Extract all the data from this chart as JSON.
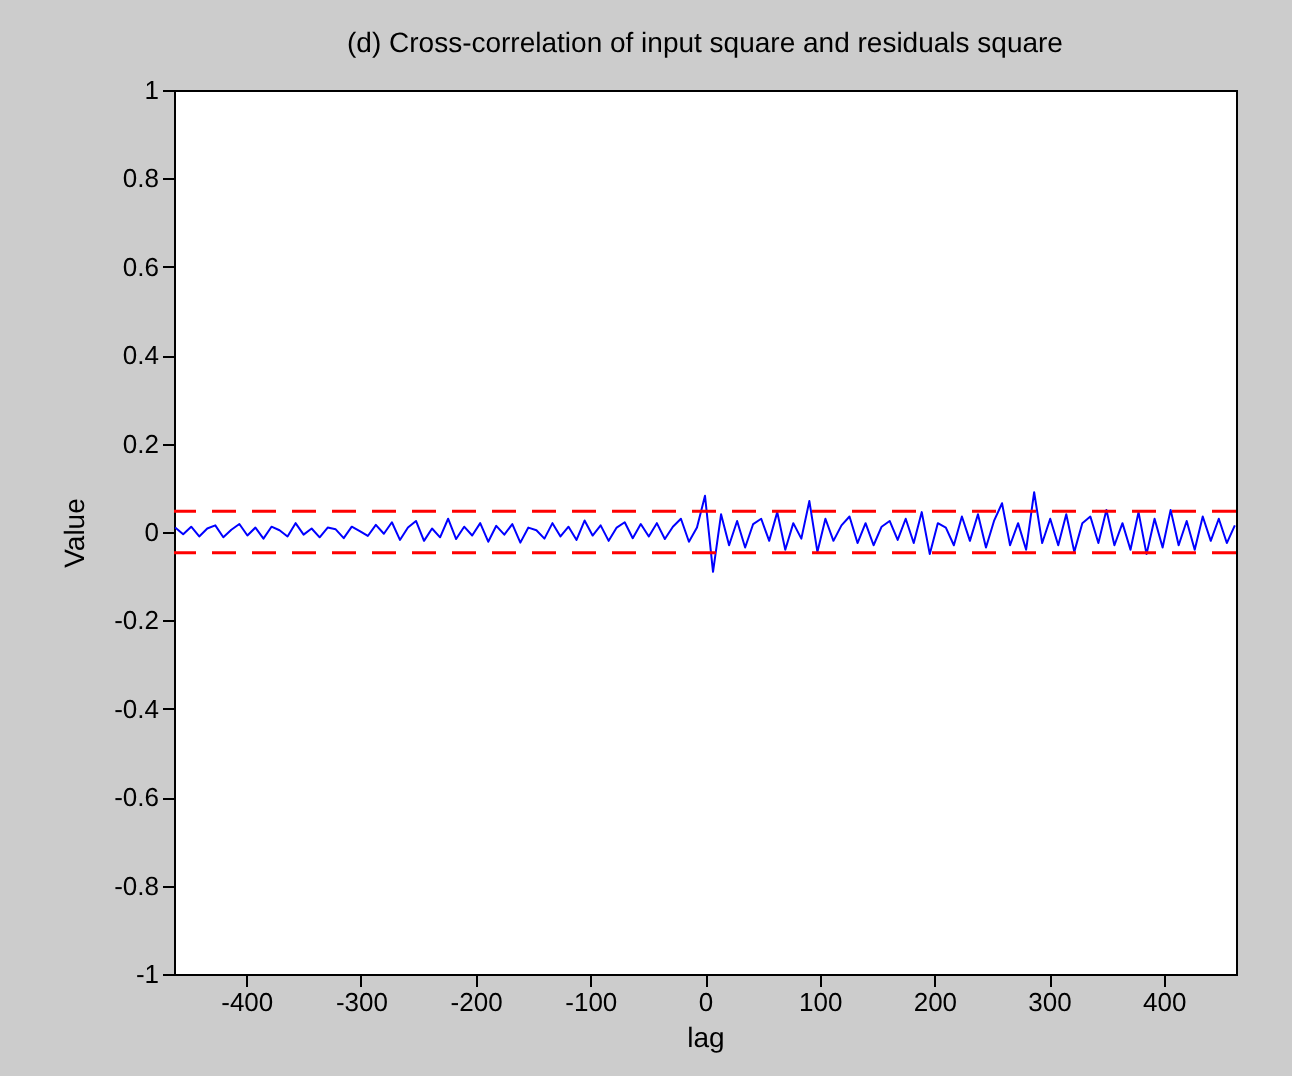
{
  "chart_data": {
    "type": "line",
    "title": "(d) Cross-correlation of input square and residuals square",
    "xlabel": "lag",
    "ylabel": "Value",
    "x": [
      -462,
      -455,
      -448,
      -441,
      -434,
      -427,
      -420,
      -413,
      -406,
      -399,
      -392,
      -385,
      -378,
      -371,
      -364,
      -357,
      -350,
      -343,
      -336,
      -329,
      -322,
      -315,
      -308,
      -301,
      -294,
      -287,
      -280,
      -273,
      -266,
      -259,
      -252,
      -245,
      -238,
      -231,
      -224,
      -217,
      -210,
      -203,
      -196,
      -189,
      -182,
      -175,
      -168,
      -161,
      -154,
      -147,
      -140,
      -133,
      -126,
      -119,
      -112,
      -105,
      -98,
      -91,
      -84,
      -77,
      -70,
      -63,
      -56,
      -49,
      -42,
      -35,
      -28,
      -21,
      -14,
      -7,
      0,
      7,
      14,
      21,
      28,
      35,
      42,
      49,
      56,
      63,
      70,
      77,
      84,
      91,
      98,
      105,
      112,
      119,
      126,
      133,
      140,
      147,
      154,
      161,
      168,
      175,
      182,
      189,
      196,
      203,
      210,
      217,
      224,
      231,
      238,
      245,
      252,
      259,
      266,
      273,
      280,
      287,
      294,
      301,
      308,
      315,
      322,
      329,
      336,
      343,
      350,
      357,
      364,
      371,
      378,
      385,
      392,
      399,
      406,
      413,
      420,
      427,
      434,
      441,
      448,
      455,
      462
    ],
    "series": [
      {
        "color": "#0000ff",
        "values": [
          0.01,
          -0.005,
          0.012,
          -0.01,
          0.008,
          0.015,
          -0.012,
          0.005,
          0.018,
          -0.008,
          0.01,
          -0.015,
          0.012,
          0.004,
          -0.01,
          0.02,
          -0.006,
          0.008,
          -0.012,
          0.01,
          0.006,
          -0.014,
          0.012,
          0.002,
          -0.009,
          0.016,
          -0.004,
          0.022,
          -0.018,
          0.01,
          0.025,
          -0.02,
          0.008,
          -0.012,
          0.03,
          -0.016,
          0.012,
          -0.008,
          0.02,
          -0.022,
          0.014,
          -0.006,
          0.018,
          -0.024,
          0.01,
          0.004,
          -0.015,
          0.02,
          -0.01,
          0.012,
          -0.018,
          0.026,
          -0.008,
          0.015,
          -0.02,
          0.01,
          0.022,
          -0.014,
          0.018,
          -0.01,
          0.02,
          -0.016,
          0.012,
          0.03,
          -0.022,
          0.01,
          0.082,
          -0.09,
          0.04,
          -0.03,
          0.025,
          -0.035,
          0.018,
          0.03,
          -0.02,
          0.045,
          -0.04,
          0.02,
          -0.015,
          0.07,
          -0.045,
          0.03,
          -0.02,
          0.015,
          0.035,
          -0.025,
          0.02,
          -0.03,
          0.012,
          0.025,
          -0.018,
          0.03,
          -0.025,
          0.045,
          -0.05,
          0.02,
          0.01,
          -0.03,
          0.035,
          -0.02,
          0.04,
          -0.035,
          0.025,
          0.065,
          -0.03,
          0.02,
          -0.04,
          0.09,
          -0.025,
          0.03,
          -0.03,
          0.04,
          -0.045,
          0.02,
          0.035,
          -0.025,
          0.05,
          -0.03,
          0.02,
          -0.04,
          0.045,
          -0.05,
          0.03,
          -0.035,
          0.05,
          -0.03,
          0.025,
          -0.04,
          0.035,
          -0.02,
          0.03,
          -0.025,
          0.015
        ]
      }
    ],
    "xlim": [
      -463,
      463
    ],
    "xticks": [
      -400,
      -300,
      -200,
      -100,
      0,
      100,
      200,
      300,
      400
    ],
    "ylim": [
      -1,
      1
    ],
    "yticks": [
      -1,
      -0.8,
      -0.6,
      -0.4,
      -0.2,
      0,
      0.2,
      0.4,
      0.6,
      0.8,
      1
    ],
    "ref_lines": [
      {
        "axis": "y",
        "value": 0.047,
        "color": "#ff0000",
        "line_style": "dashed"
      },
      {
        "axis": "y",
        "value": -0.047,
        "color": "#ff0000",
        "line_style": "dashed"
      }
    ],
    "grid": false,
    "legend": false
  }
}
